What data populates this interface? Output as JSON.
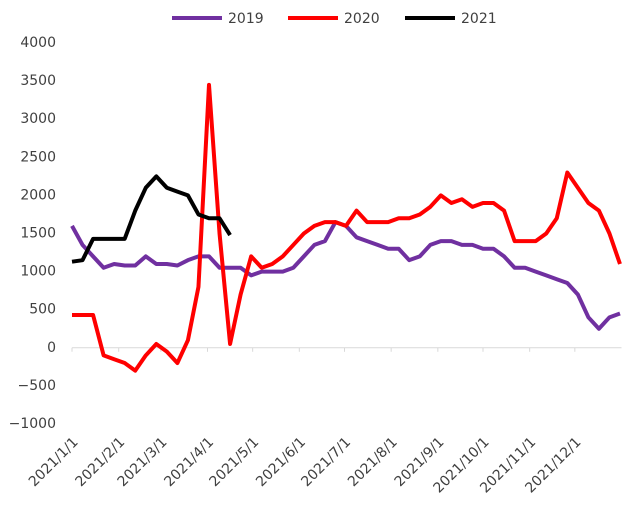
{
  "chart_data": {
    "type": "line",
    "x": [
      0,
      7,
      14,
      21,
      28,
      35,
      42,
      49,
      56,
      63,
      70,
      77,
      84,
      91,
      98,
      105,
      112,
      119,
      126,
      133,
      140,
      147,
      154,
      161,
      168,
      175,
      182,
      189,
      196,
      203,
      210,
      217,
      224,
      231,
      238,
      245,
      252,
      259,
      266,
      273,
      280,
      287,
      294,
      301,
      308,
      315,
      322,
      329,
      336,
      343,
      350,
      357,
      364
    ],
    "xlim": [
      0,
      365
    ],
    "xticks": [
      {
        "value": 0,
        "label": "2021/1/1"
      },
      {
        "value": 31,
        "label": "2021/2/1"
      },
      {
        "value": 59,
        "label": "2021/3/1"
      },
      {
        "value": 90,
        "label": "2021/4/1"
      },
      {
        "value": 120,
        "label": "2021/5/1"
      },
      {
        "value": 151,
        "label": "2021/6/1"
      },
      {
        "value": 181,
        "label": "2021/7/1"
      },
      {
        "value": 212,
        "label": "2021/8/1"
      },
      {
        "value": 243,
        "label": "2021/9/1"
      },
      {
        "value": 273,
        "label": "2021/10/1"
      },
      {
        "value": 304,
        "label": "2021/11/1"
      },
      {
        "value": 334,
        "label": "2021/12/1"
      }
    ],
    "ylim": [
      -1000,
      4000
    ],
    "yticks": [
      {
        "value": -1000,
        "label": "−1000"
      },
      {
        "value": -500,
        "label": "−500"
      },
      0,
      500,
      1000,
      1500,
      2000,
      2500,
      3000,
      3500,
      4000
    ],
    "legend": "top",
    "series": [
      {
        "name": "2019",
        "color": "#7030a0",
        "values": [
          1600,
          1350,
          1200,
          1050,
          1100,
          1080,
          1080,
          1200,
          1100,
          1100,
          1080,
          1150,
          1200,
          1200,
          1050,
          1050,
          1050,
          950,
          1000,
          1000,
          1000,
          1050,
          1200,
          1350,
          1400,
          1650,
          1600,
          1450,
          1400,
          1350,
          1300,
          1300,
          1150,
          1200,
          1350,
          1400,
          1400,
          1350,
          1350,
          1300,
          1300,
          1200,
          1050,
          1050,
          1000,
          950,
          900,
          850,
          700,
          400,
          250,
          400,
          450
        ]
      },
      {
        "name": "2020",
        "color": "#ff0000",
        "values": [
          430,
          430,
          430,
          -100,
          -150,
          -200,
          -300,
          -100,
          50,
          -50,
          -200,
          100,
          800,
          3450,
          1500,
          50,
          700,
          1200,
          1050,
          1100,
          1200,
          1350,
          1500,
          1600,
          1650,
          1650,
          1600,
          1800,
          1650,
          1650,
          1650,
          1700,
          1700,
          1750,
          1850,
          2000,
          1900,
          1950,
          1850,
          1900,
          1900,
          1800,
          1400,
          1400,
          1400,
          1500,
          1700,
          2300,
          2100,
          1900,
          1800,
          1500,
          1100
        ]
      },
      {
        "name": "2021",
        "color": "#000000",
        "values": [
          1130,
          1150,
          1430,
          1430,
          1430,
          1430,
          1800,
          2100,
          2250,
          2100,
          2050,
          2000,
          1750,
          1700,
          1700,
          1480,
          null,
          null,
          null,
          null,
          null,
          null,
          null,
          null,
          null,
          null,
          null,
          null,
          null,
          null,
          null,
          null,
          null,
          null,
          null,
          null,
          null,
          null,
          null,
          null,
          null,
          null,
          null,
          null,
          null,
          null,
          null,
          null,
          null,
          null,
          null,
          null,
          null
        ]
      }
    ]
  }
}
